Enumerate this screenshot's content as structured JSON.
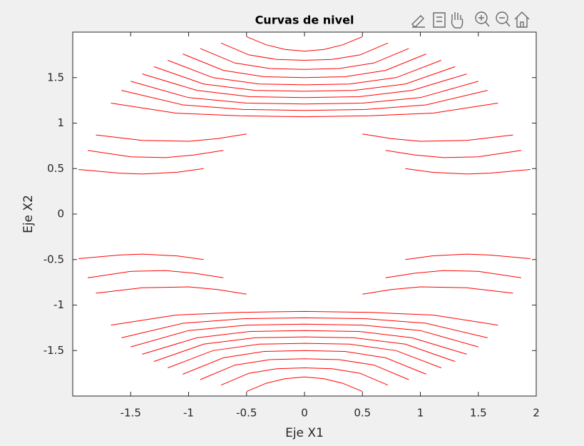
{
  "chart_data": {
    "type": "contour",
    "title": "Curvas de nivel",
    "x_label": "Eje X1",
    "y_label": "Eje X2",
    "color": "#ff0000",
    "xlim": [
      -2,
      2
    ],
    "ylim": [
      -2,
      2
    ],
    "xticks": [
      -1.5,
      -1,
      -0.5,
      0,
      0.5,
      1,
      1.5,
      2
    ],
    "yticks": [
      -1.5,
      -1,
      -0.5,
      0,
      0.5,
      1,
      1.5
    ],
    "series": [
      {
        "x": [
          -0.5,
          -0.33,
          -0.17,
          0,
          0.17,
          0.33,
          0.5
        ],
        "y": [
          1.95,
          1.86,
          1.81,
          1.79,
          1.81,
          1.86,
          1.95
        ]
      },
      {
        "x": [
          -0.72,
          -0.48,
          -0.24,
          0,
          0.24,
          0.48,
          0.72
        ],
        "y": [
          1.88,
          1.75,
          1.7,
          1.69,
          1.7,
          1.75,
          1.88
        ]
      },
      {
        "x": [
          -0.9,
          -0.6,
          -0.3,
          0,
          0.3,
          0.6,
          0.9
        ],
        "y": [
          1.82,
          1.66,
          1.6,
          1.59,
          1.6,
          1.66,
          1.82
        ]
      },
      {
        "x": [
          -1.05,
          -0.7,
          -0.35,
          0,
          0.35,
          0.7,
          1.05
        ],
        "y": [
          1.76,
          1.58,
          1.51,
          1.5,
          1.51,
          1.58,
          1.76
        ]
      },
      {
        "x": [
          -1.18,
          -0.79,
          -0.39,
          0,
          0.39,
          0.79,
          1.18
        ],
        "y": [
          1.69,
          1.5,
          1.43,
          1.42,
          1.43,
          1.5,
          1.69
        ]
      },
      {
        "x": [
          -1.3,
          -0.87,
          -0.43,
          0,
          0.43,
          0.87,
          1.3
        ],
        "y": [
          1.62,
          1.43,
          1.36,
          1.35,
          1.36,
          1.43,
          1.62
        ]
      },
      {
        "x": [
          -1.4,
          -0.93,
          -0.47,
          0,
          0.47,
          0.93,
          1.4
        ],
        "y": [
          1.54,
          1.36,
          1.29,
          1.28,
          1.29,
          1.36,
          1.54
        ]
      },
      {
        "x": [
          -1.5,
          -1,
          -0.5,
          0,
          0.5,
          1,
          1.5
        ],
        "y": [
          1.46,
          1.28,
          1.22,
          1.21,
          1.22,
          1.28,
          1.46
        ]
      },
      {
        "x": [
          -1.58,
          -1.05,
          -0.53,
          0,
          0.53,
          1.05,
          1.58
        ],
        "y": [
          1.36,
          1.2,
          1.15,
          1.14,
          1.15,
          1.2,
          1.36
        ]
      },
      {
        "x": [
          -1.67,
          -1.11,
          -0.56,
          0,
          0.56,
          1.11,
          1.67
        ],
        "y": [
          1.22,
          1.11,
          1.08,
          1.07,
          1.08,
          1.11,
          1.22
        ]
      },
      {
        "x": [
          -1.8,
          -1.4,
          -1,
          -0.75,
          -0.5,
          null,
          0.5,
          0.75,
          1,
          1.4,
          1.8
        ],
        "y": [
          0.87,
          0.81,
          0.8,
          0.83,
          0.88,
          null,
          0.88,
          0.83,
          0.8,
          0.81,
          0.87
        ]
      },
      {
        "x": [
          -1.87,
          -1.5,
          -1.2,
          -0.95,
          -0.7,
          null,
          0.7,
          0.95,
          1.2,
          1.5,
          1.87
        ],
        "y": [
          0.7,
          0.63,
          0.62,
          0.65,
          0.7,
          null,
          0.7,
          0.65,
          0.62,
          0.63,
          0.7
        ]
      },
      {
        "x": [
          -1.95,
          -1.6,
          -1.4,
          -1.1,
          -0.87,
          null,
          0.87,
          1.1,
          1.4,
          1.6,
          1.95
        ],
        "y": [
          0.49,
          0.45,
          0.44,
          0.46,
          0.5,
          null,
          0.5,
          0.46,
          0.44,
          0.45,
          0.49
        ]
      },
      {
        "x": [
          -0.5,
          -0.33,
          -0.17,
          0,
          0.17,
          0.33,
          0.5
        ],
        "y": [
          -1.95,
          -1.86,
          -1.81,
          -1.79,
          -1.81,
          -1.86,
          -1.95
        ]
      },
      {
        "x": [
          -0.72,
          -0.48,
          -0.24,
          0,
          0.24,
          0.48,
          0.72
        ],
        "y": [
          -1.88,
          -1.75,
          -1.7,
          -1.69,
          -1.7,
          -1.75,
          -1.88
        ]
      },
      {
        "x": [
          -0.9,
          -0.6,
          -0.3,
          0,
          0.3,
          0.6,
          0.9
        ],
        "y": [
          -1.82,
          -1.66,
          -1.6,
          -1.59,
          -1.6,
          -1.66,
          -1.82
        ]
      },
      {
        "x": [
          -1.05,
          -0.7,
          -0.35,
          0,
          0.35,
          0.7,
          1.05
        ],
        "y": [
          -1.76,
          -1.58,
          -1.51,
          -1.5,
          -1.51,
          -1.58,
          -1.76
        ]
      },
      {
        "x": [
          -1.18,
          -0.79,
          -0.39,
          0,
          0.39,
          0.79,
          1.18
        ],
        "y": [
          -1.69,
          -1.5,
          -1.43,
          -1.42,
          -1.43,
          -1.5,
          -1.69
        ]
      },
      {
        "x": [
          -1.3,
          -0.87,
          -0.43,
          0,
          0.43,
          0.87,
          1.3
        ],
        "y": [
          -1.62,
          -1.43,
          -1.36,
          -1.35,
          -1.36,
          -1.43,
          -1.62
        ]
      },
      {
        "x": [
          -1.4,
          -0.93,
          -0.47,
          0,
          0.47,
          0.93,
          1.4
        ],
        "y": [
          -1.54,
          -1.36,
          -1.29,
          -1.28,
          -1.29,
          -1.36,
          -1.54
        ]
      },
      {
        "x": [
          -1.5,
          -1,
          -0.5,
          0,
          0.5,
          1,
          1.5
        ],
        "y": [
          -1.46,
          -1.28,
          -1.22,
          -1.21,
          -1.22,
          -1.28,
          -1.46
        ]
      },
      {
        "x": [
          -1.58,
          -1.05,
          -0.53,
          0,
          0.53,
          1.05,
          1.58
        ],
        "y": [
          -1.36,
          -1.2,
          -1.15,
          -1.14,
          -1.15,
          -1.2,
          -1.36
        ]
      },
      {
        "x": [
          -1.67,
          -1.11,
          -0.56,
          0,
          0.56,
          1.11,
          1.67
        ],
        "y": [
          -1.22,
          -1.11,
          -1.08,
          -1.07,
          -1.08,
          -1.11,
          -1.22
        ]
      },
      {
        "x": [
          -1.8,
          -1.4,
          -1,
          -0.75,
          -0.5,
          null,
          0.5,
          0.75,
          1,
          1.4,
          1.8
        ],
        "y": [
          -0.87,
          -0.81,
          -0.8,
          -0.83,
          -0.88,
          null,
          -0.88,
          -0.83,
          -0.8,
          -0.81,
          -0.87
        ]
      },
      {
        "x": [
          -1.87,
          -1.5,
          -1.2,
          -0.95,
          -0.7,
          null,
          0.7,
          0.95,
          1.2,
          1.5,
          1.87
        ],
        "y": [
          -0.7,
          -0.63,
          -0.62,
          -0.65,
          -0.7,
          null,
          -0.7,
          -0.65,
          -0.62,
          -0.63,
          -0.7
        ]
      },
      {
        "x": [
          -1.95,
          -1.6,
          -1.4,
          -1.1,
          -0.87,
          null,
          0.87,
          1.1,
          1.4,
          1.6,
          1.95
        ],
        "y": [
          -0.49,
          -0.45,
          -0.44,
          -0.46,
          -0.5,
          null,
          -0.5,
          -0.46,
          -0.44,
          -0.45,
          -0.49
        ]
      }
    ]
  }
}
